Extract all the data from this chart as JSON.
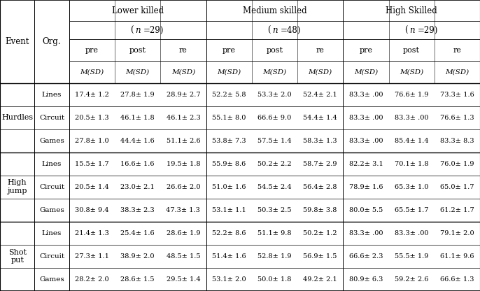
{
  "group_labels": [
    "Lower killed",
    "Medium skilled",
    "High Skilled"
  ],
  "group_ns": [
    "(n=29)",
    "(n=48)",
    "(n=29)"
  ],
  "group_n_vals": [
    29,
    48,
    29
  ],
  "sub_labels": [
    "pre",
    "post",
    "re"
  ],
  "msd": "M(SD)",
  "events": [
    "Hurdles",
    "High\njump",
    "Shot\nput"
  ],
  "orgs": [
    "Lines",
    "Circuit",
    "Games"
  ],
  "table_data": [
    [
      "17.4± 1.2",
      "27.8± 1.9",
      "28.9± 2.7",
      "52.2± 5.8",
      "53.3± 2.0",
      "52.4± 2.1",
      "83.3± .00",
      "76.6± 1.9",
      "73.3± 1.6"
    ],
    [
      "20.5± 1.3",
      "46.1± 1.8",
      "46.1± 2.3",
      "55.1± 8.0",
      "66.6± 9.0",
      "54.4± 1.4",
      "83.3± .00",
      "83.3± .00",
      "76.6± 1.3"
    ],
    [
      "27.8± 1.0",
      "44.4± 1.6",
      "51.1± 2.6",
      "53.8± 7.3",
      "57.5± 1.4",
      "58.3± 1.3",
      "83.3± .00",
      "85.4± 1.4",
      "83.3± 8.3"
    ],
    [
      "15.5± 1.7",
      "16.6± 1.6",
      "19.5± 1.8",
      "55.9± 8.6",
      "50.2± 2.2",
      "58.7± 2.9",
      "82.2± 3.1",
      "70.1± 1.8",
      "76.0± 1.9"
    ],
    [
      "20.5± 1.4",
      "23.0± 2.1",
      "26.6± 2.0",
      "51.0± 1.6",
      "54.5± 2.4",
      "56.4± 2.8",
      "78.9± 1.6",
      "65.3± 1.0",
      "65.0± 1.7"
    ],
    [
      "30.8± 9.4",
      "38.3± 2.3",
      "47.3± 1.3",
      "53.1± 1.1",
      "50.3± 2.5",
      "59.8± 3.8",
      "80.0± 5.5",
      "65.5± 1.7",
      "61.2± 1.7"
    ],
    [
      "21.4± 1.3",
      "25.4± 1.6",
      "28.6± 1.9",
      "52.2± 8.6",
      "51.1± 9.8",
      "50.2± 1.2",
      "83.3± .00",
      "83.3± .00",
      "79.1± 2.0"
    ],
    [
      "27.3± 1.1",
      "38.9± 2.0",
      "48.5± 1.5",
      "51.4± 1.6",
      "52.8± 1.9",
      "56.9± 1.5",
      "66.6± 2.3",
      "55.5± 1.9",
      "61.1± 9.6"
    ],
    [
      "28.2± 2.0",
      "28.6± 1.5",
      "29.5± 1.4",
      "53.1± 2.0",
      "50.0± 1.8",
      "49.2± 2.1",
      "80.9± 6.3",
      "59.2± 2.6",
      "66.6± 1.3"
    ]
  ],
  "bg_color": "#ffffff",
  "line_color": "#000000",
  "text_color": "#000000",
  "figsize": [
    6.86,
    4.16
  ],
  "dpi": 100
}
